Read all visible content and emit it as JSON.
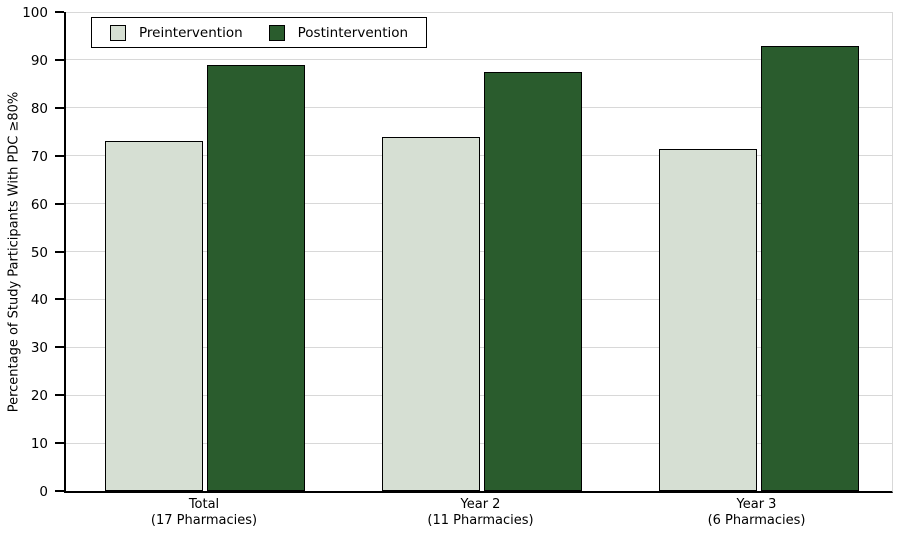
{
  "chart_data": {
    "type": "bar",
    "title": "",
    "xlabel": "",
    "ylabel": "Percentage of Study Participants With PDC ≥80%",
    "ylim": [
      0,
      100
    ],
    "yticks": [
      0,
      10,
      20,
      30,
      40,
      50,
      60,
      70,
      80,
      90,
      100
    ],
    "grid": true,
    "legend_position": "top-left",
    "categories": [
      {
        "label": "Total",
        "sublabel": "(17 Pharmacies)"
      },
      {
        "label": "Year 2",
        "sublabel": "(11 Pharmacies)"
      },
      {
        "label": "Year 3",
        "sublabel": "(6 Pharmacies)"
      }
    ],
    "series": [
      {
        "name": "Preintervention",
        "color": "#d6dfd3",
        "values": [
          73,
          74,
          71.4
        ]
      },
      {
        "name": "Postintervention",
        "color": "#2a5c2d",
        "values": [
          89,
          87.4,
          93
        ]
      }
    ]
  },
  "style": {
    "background": "#ffffff",
    "grid_color": "#d8d8d8",
    "axis_color": "#000000",
    "bar_border_color": "#000000",
    "text_color": "#000000"
  }
}
